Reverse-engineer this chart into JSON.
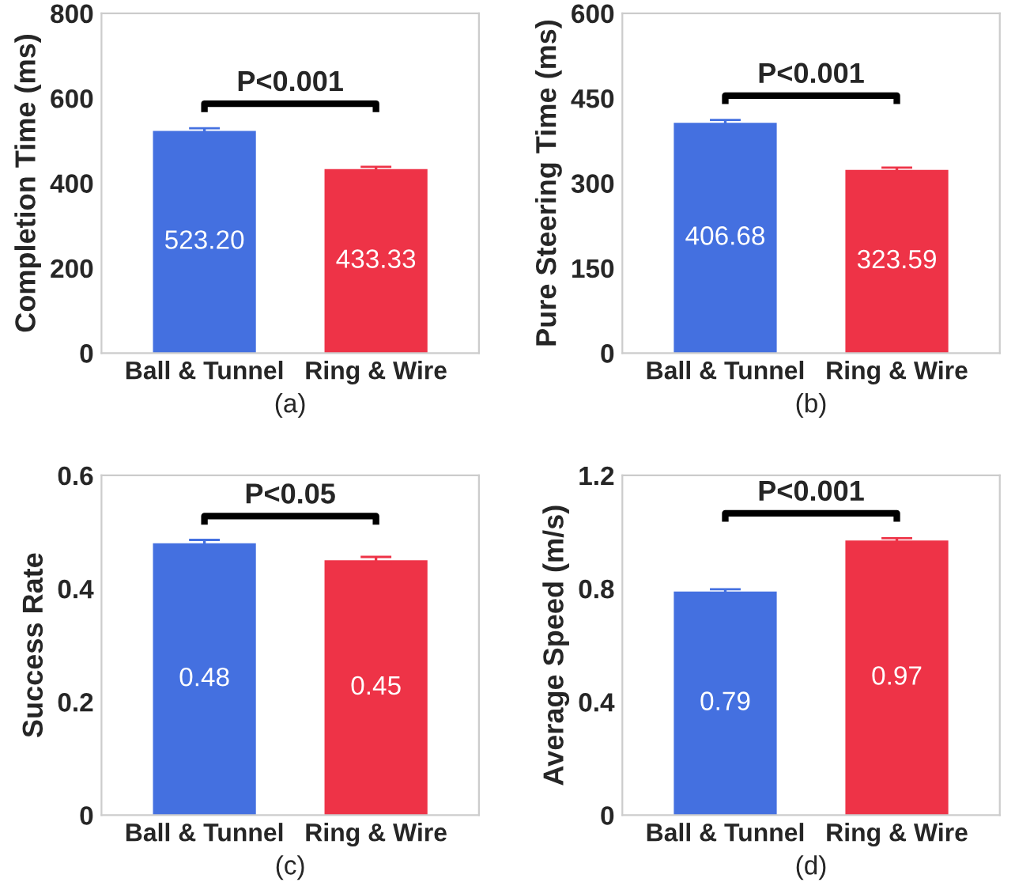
{
  "chart_data": [
    {
      "type": "bar",
      "categories": [
        "Ball & Tunnel",
        "Ring & Wire"
      ],
      "values": [
        523.2,
        433.33
      ],
      "value_labels": [
        "523.20",
        "433.33"
      ],
      "errors": [
        6,
        5
      ],
      "colors": [
        "#4470e0",
        "#ee3347"
      ],
      "ylabel": "Completion Time (ms)",
      "xlabel": "(a)",
      "ylim": [
        0,
        800
      ],
      "yticks": [
        0,
        200,
        400,
        600,
        800
      ],
      "annotations": [
        "P<0.001"
      ],
      "grid": false
    },
    {
      "type": "bar",
      "categories": [
        "Ball & Tunnel",
        "Ring & Wire"
      ],
      "values": [
        406.68,
        323.59
      ],
      "value_labels": [
        "406.68",
        "323.59"
      ],
      "errors": [
        5,
        4
      ],
      "colors": [
        "#4470e0",
        "#ee3347"
      ],
      "ylabel": "Pure Steering Time (ms)",
      "xlabel": "(b)",
      "ylim": [
        0,
        600
      ],
      "yticks": [
        0,
        150,
        300,
        450,
        600
      ],
      "annotations": [
        "P<0.001"
      ],
      "grid": false
    },
    {
      "type": "bar",
      "categories": [
        "Ball & Tunnel",
        "Ring & Wire"
      ],
      "values": [
        0.48,
        0.45
      ],
      "value_labels": [
        "0.48",
        "0.45"
      ],
      "errors": [
        0.006,
        0.006
      ],
      "colors": [
        "#4470e0",
        "#ee3347"
      ],
      "ylabel": "Success Rate",
      "xlabel": "(c)",
      "ylim": [
        0,
        0.6
      ],
      "yticks": [
        {
          "value": 0,
          "label": "0"
        },
        0.2,
        0.4,
        0.6
      ],
      "annotations": [
        "P<0.05"
      ],
      "grid": false
    },
    {
      "type": "bar",
      "categories": [
        "Ball & Tunnel",
        "Ring & Wire"
      ],
      "values": [
        0.79,
        0.97
      ],
      "value_labels": [
        "0.79",
        "0.97"
      ],
      "errors": [
        0.008,
        0.008
      ],
      "colors": [
        "#4470e0",
        "#ee3347"
      ],
      "ylabel": "Average Speed (m/s)",
      "xlabel": "(d)",
      "ylim": [
        0,
        1.2
      ],
      "yticks": [
        {
          "value": 0,
          "label": "0"
        },
        0.4,
        0.8,
        1.2
      ],
      "annotations": [
        "P<0.001"
      ],
      "grid": false
    }
  ]
}
